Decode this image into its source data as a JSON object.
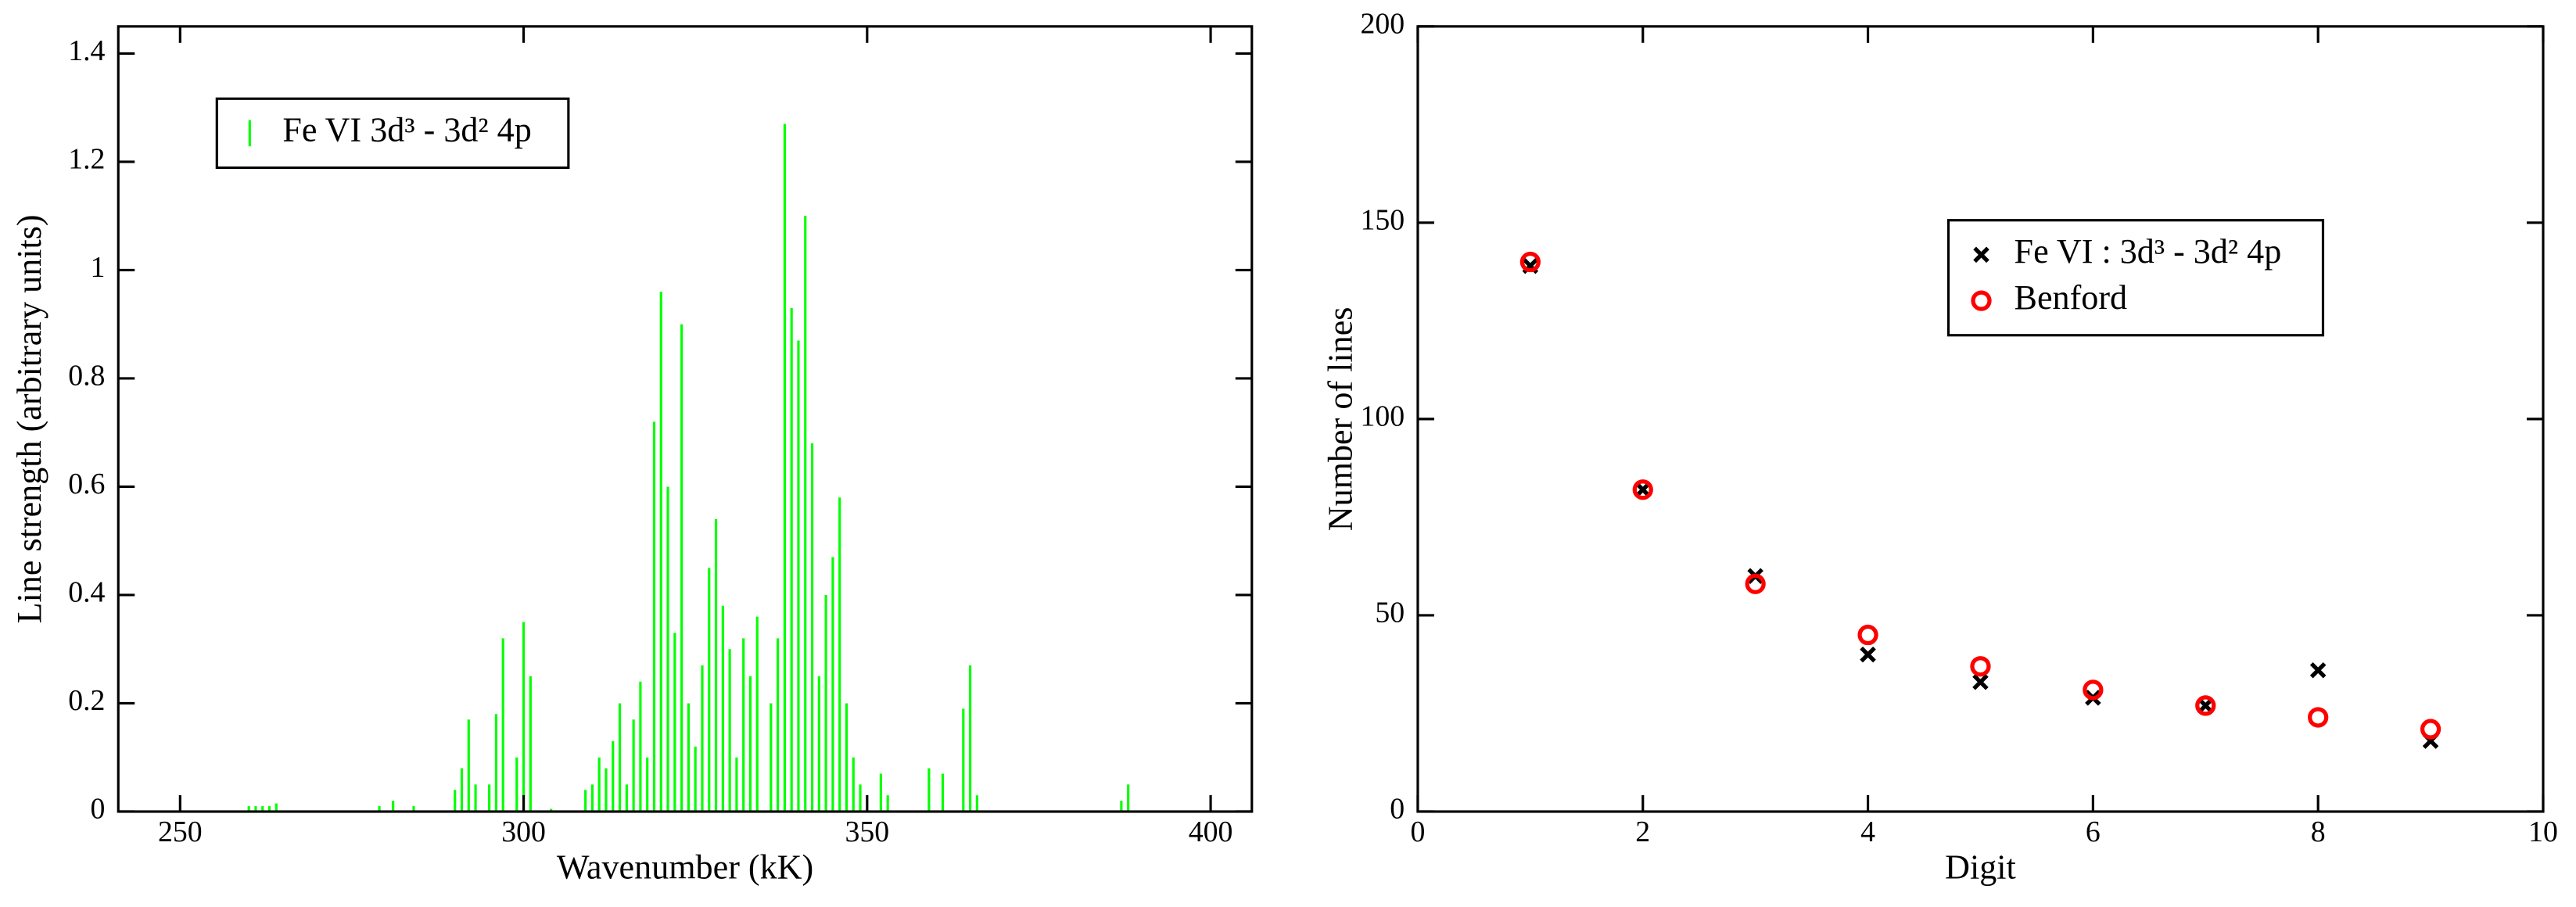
{
  "chart_data": [
    {
      "type": "stem",
      "xlabel": "Wavenumber (kK)",
      "ylabel": "Line strength (arbitrary units)",
      "x": [
        260,
        261,
        262,
        263,
        264,
        279,
        281,
        284,
        290,
        291,
        292,
        293,
        295,
        296,
        297,
        299,
        300,
        301,
        304,
        309,
        310,
        311,
        312,
        313,
        314,
        315,
        316,
        317,
        318,
        319,
        320,
        321,
        322,
        323,
        324,
        325,
        326,
        327,
        328,
        329,
        330,
        331,
        332,
        333,
        334,
        336,
        337,
        338,
        339,
        340,
        341,
        342,
        343,
        344,
        345,
        346,
        347,
        348,
        349,
        352,
        353,
        359,
        361,
        364,
        365,
        366,
        387,
        388
      ],
      "series": [
        {
          "name": "Fe VI 3d³ - 3d² 4p",
          "color": "#00ff00",
          "values": [
            0.01,
            0.01,
            0.01,
            0.01,
            0.015,
            0.01,
            0.02,
            0.01,
            0.04,
            0.08,
            0.17,
            0.05,
            0.05,
            0.18,
            0.32,
            0.1,
            0.35,
            0.25,
            0.005,
            0.04,
            0.05,
            0.1,
            0.08,
            0.13,
            0.2,
            0.05,
            0.17,
            0.24,
            0.1,
            0.72,
            0.96,
            0.6,
            0.33,
            0.9,
            0.2,
            0.12,
            0.27,
            0.45,
            0.54,
            0.38,
            0.3,
            0.1,
            0.32,
            0.25,
            0.36,
            0.2,
            0.32,
            1.27,
            0.93,
            0.87,
            1.1,
            0.68,
            0.25,
            0.4,
            0.47,
            0.58,
            0.2,
            0.1,
            0.05,
            0.07,
            0.03,
            0.08,
            0.07,
            0.19,
            0.27,
            0.03,
            0.02,
            0.05
          ]
        }
      ],
      "xlim": [
        241,
        406
      ],
      "xticks": [
        250,
        300,
        350,
        400
      ],
      "ylim": [
        0,
        1.45
      ],
      "yticks": [
        0,
        0.2,
        0.4,
        0.6,
        0.8,
        1,
        1.2,
        1.4
      ],
      "legend": "upper left"
    },
    {
      "type": "scatter",
      "xlabel": "Digit",
      "ylabel": "Number of lines",
      "x": [
        1,
        2,
        3,
        4,
        5,
        6,
        7,
        8,
        9
      ],
      "series": [
        {
          "name": "Fe VI : 3d³ - 3d² 4p",
          "color": "#000000",
          "marker": "x",
          "values": [
            139,
            82,
            60,
            40,
            33,
            29,
            27,
            36,
            18
          ]
        },
        {
          "name": "Benford",
          "color": "#ff0000",
          "marker": "circle",
          "values": [
            140,
            82,
            58,
            45,
            37,
            31,
            27,
            24,
            21
          ]
        }
      ],
      "xlim": [
        0,
        10
      ],
      "xticks": [
        0,
        2,
        4,
        6,
        8,
        10
      ],
      "ylim": [
        0,
        200
      ],
      "yticks": [
        0,
        50,
        100,
        150,
        200
      ],
      "legend": "center right"
    }
  ]
}
